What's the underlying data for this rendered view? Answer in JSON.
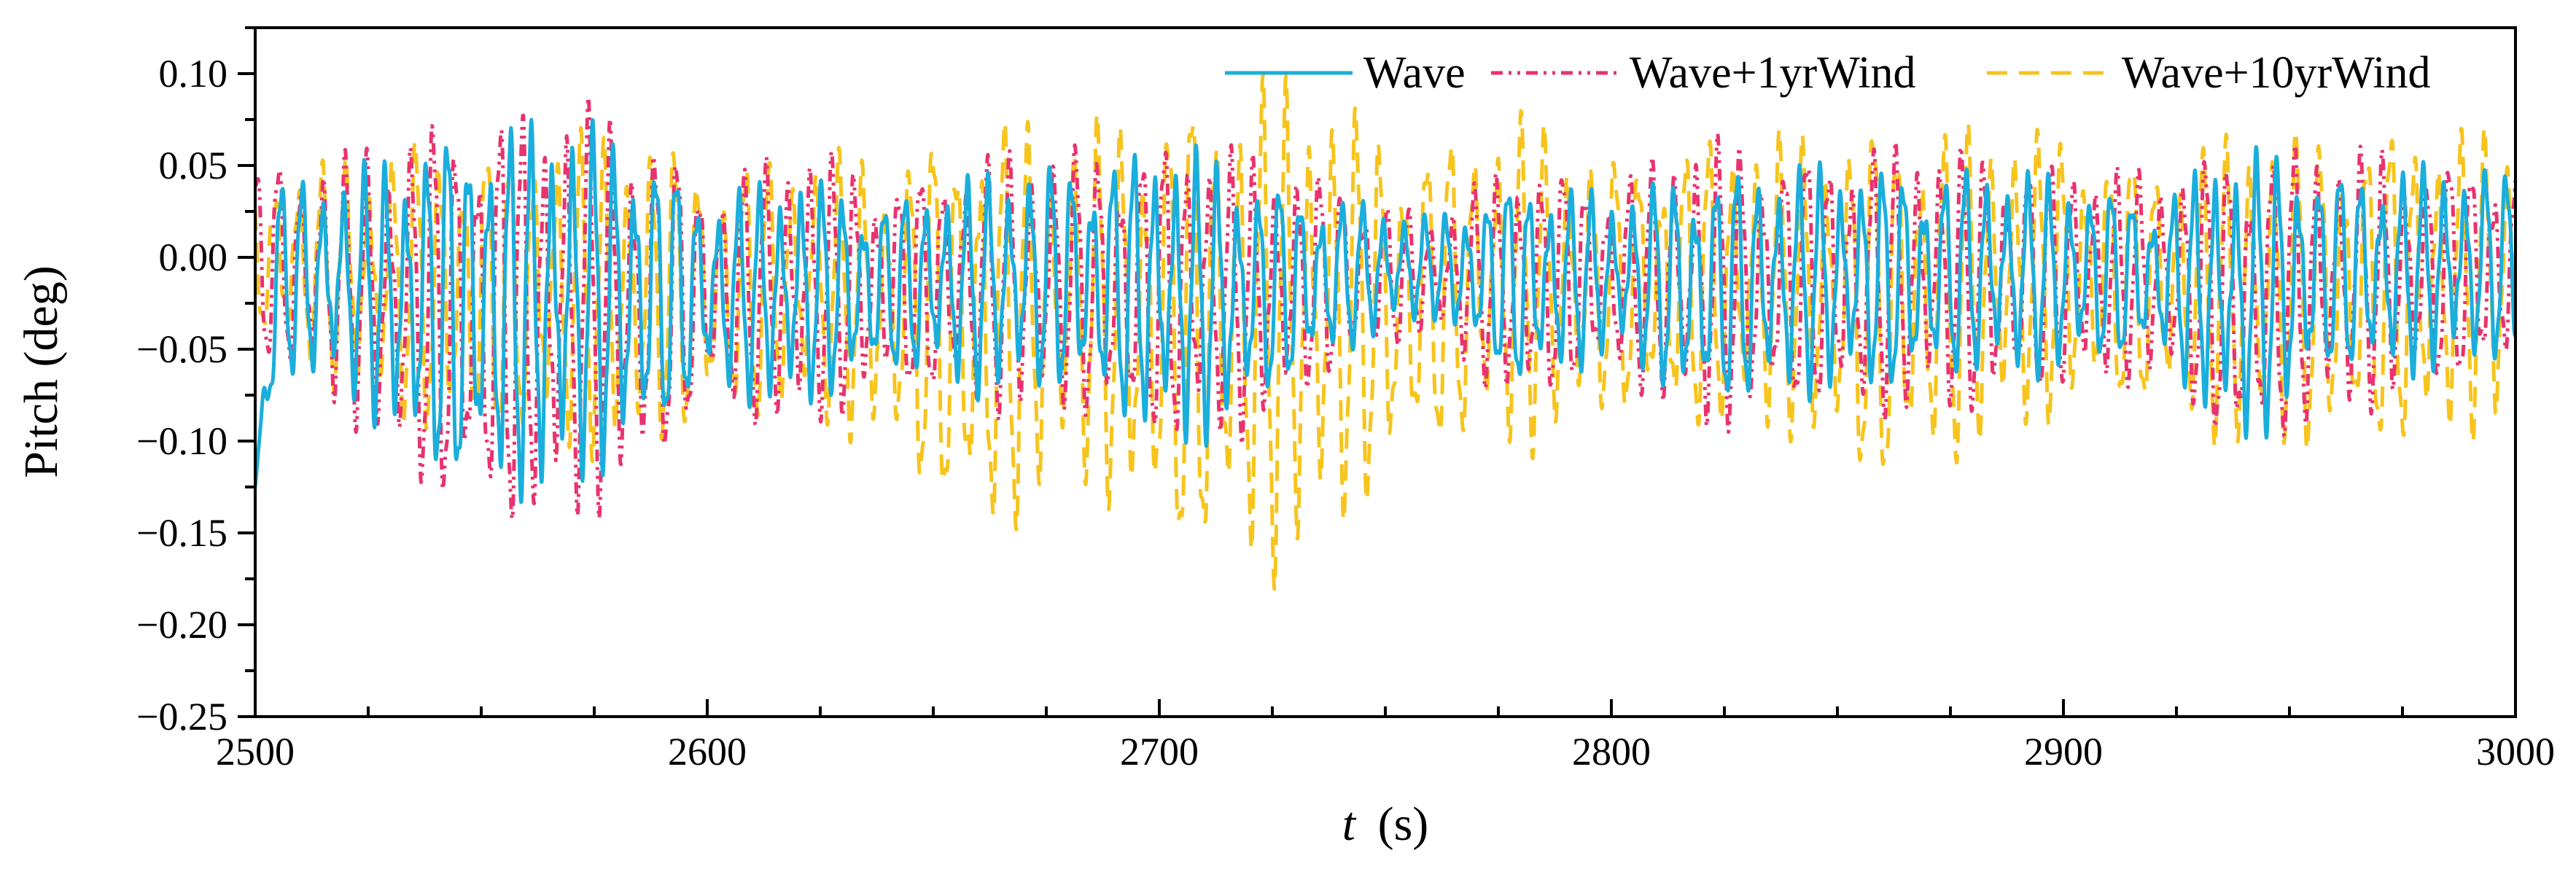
{
  "chart_data": {
    "type": "line",
    "title": "",
    "xlabel": "t",
    "xlabel_unit": "(s)",
    "ylabel": "Pitch (deg)",
    "xlim": [
      2500,
      3000
    ],
    "ylim": [
      -0.25,
      0.125
    ],
    "x_ticks": [
      2500,
      2600,
      2700,
      2800,
      2900,
      3000
    ],
    "x_tick_labels": [
      "2500",
      "2600",
      "2700",
      "2800",
      "2900",
      "3000"
    ],
    "y_ticks": [
      -0.25,
      -0.2,
      -0.15,
      -0.1,
      -0.05,
      0.0,
      0.05,
      0.1
    ],
    "y_tick_labels": [
      "−0.25",
      "−0.20",
      "−0.15",
      "−0.10",
      "−0.05",
      "0.00",
      "0.05",
      "0.10"
    ],
    "grid": false,
    "legend_position": "top-right",
    "series": [
      {
        "name": "Wave",
        "color": "#1AAEDC",
        "style": "solid",
        "period_s": 4.6,
        "mean": -0.012,
        "x": [
          2500,
          2505,
          2520,
          2545,
          2565,
          2585,
          2600,
          2620,
          2640,
          2660,
          2680,
          2705,
          2720,
          2740,
          2760,
          2780,
          2800,
          2820,
          2840,
          2860,
          2880,
          2900,
          2920,
          2940,
          2960,
          2980,
          3000
        ],
        "upper": [
          -0.125,
          0.04,
          0.04,
          0.068,
          0.068,
          0.06,
          0.03,
          0.04,
          0.03,
          0.04,
          0.05,
          0.055,
          0.04,
          0.03,
          0.02,
          0.04,
          0.03,
          0.045,
          0.045,
          0.045,
          0.045,
          0.04,
          0.03,
          0.055,
          0.045,
          0.045,
          0.045
        ],
        "lower": [
          -0.125,
          -0.06,
          -0.07,
          -0.125,
          -0.125,
          -0.1,
          -0.07,
          -0.08,
          -0.06,
          -0.07,
          -0.07,
          -0.1,
          -0.08,
          -0.05,
          -0.03,
          -0.07,
          -0.05,
          -0.08,
          -0.07,
          -0.07,
          -0.06,
          -0.06,
          -0.05,
          -0.1,
          -0.06,
          -0.06,
          -0.05
        ]
      },
      {
        "name": "Wave+1yrWind",
        "color": "#E8336E",
        "style": "dash-dot-dot",
        "period_s": 4.9,
        "mean": -0.02,
        "x": [
          2500,
          2520,
          2545,
          2565,
          2585,
          2600,
          2620,
          2640,
          2660,
          2680,
          2705,
          2720,
          2740,
          2760,
          2780,
          2800,
          2820,
          2840,
          2860,
          2880,
          2900,
          2920,
          2940,
          2960,
          2980,
          3000
        ],
        "upper": [
          0.05,
          0.05,
          0.075,
          0.075,
          0.07,
          0.04,
          0.055,
          0.04,
          0.05,
          0.055,
          0.06,
          0.05,
          0.04,
          0.02,
          0.05,
          0.04,
          0.06,
          0.055,
          0.055,
          0.055,
          0.05,
          0.04,
          0.06,
          0.055,
          0.05,
          0.05
        ],
        "lower": [
          -0.05,
          -0.08,
          -0.14,
          -0.14,
          -0.12,
          -0.08,
          -0.09,
          -0.07,
          -0.08,
          -0.08,
          -0.1,
          -0.09,
          -0.06,
          -0.04,
          -0.08,
          -0.06,
          -0.09,
          -0.08,
          -0.08,
          -0.08,
          -0.07,
          -0.06,
          -0.11,
          -0.08,
          -0.07,
          -0.06
        ]
      },
      {
        "name": "Wave+10yrWind",
        "color": "#F7C41D",
        "style": "dashed",
        "period_s": 5.2,
        "mean": -0.025,
        "x": [
          2500,
          2520,
          2545,
          2565,
          2585,
          2600,
          2620,
          2640,
          2660,
          2680,
          2705,
          2725,
          2740,
          2760,
          2780,
          2800,
          2820,
          2840,
          2860,
          2880,
          2900,
          2920,
          2940,
          2960,
          2980,
          3000
        ],
        "upper": [
          0.04,
          0.05,
          0.06,
          0.06,
          0.06,
          0.05,
          0.05,
          0.05,
          0.075,
          0.06,
          0.085,
          0.09,
          0.075,
          0.06,
          0.07,
          0.05,
          0.06,
          0.06,
          0.07,
          0.065,
          0.06,
          0.05,
          0.06,
          0.065,
          0.065,
          0.06
        ],
        "lower": [
          -0.04,
          -0.07,
          -0.1,
          -0.1,
          -0.1,
          -0.09,
          -0.08,
          -0.1,
          -0.16,
          -0.11,
          -0.16,
          -0.165,
          -0.14,
          -0.1,
          -0.1,
          -0.08,
          -0.09,
          -0.09,
          -0.125,
          -0.1,
          -0.08,
          -0.08,
          -0.1,
          -0.1,
          -0.1,
          -0.08
        ]
      }
    ]
  }
}
